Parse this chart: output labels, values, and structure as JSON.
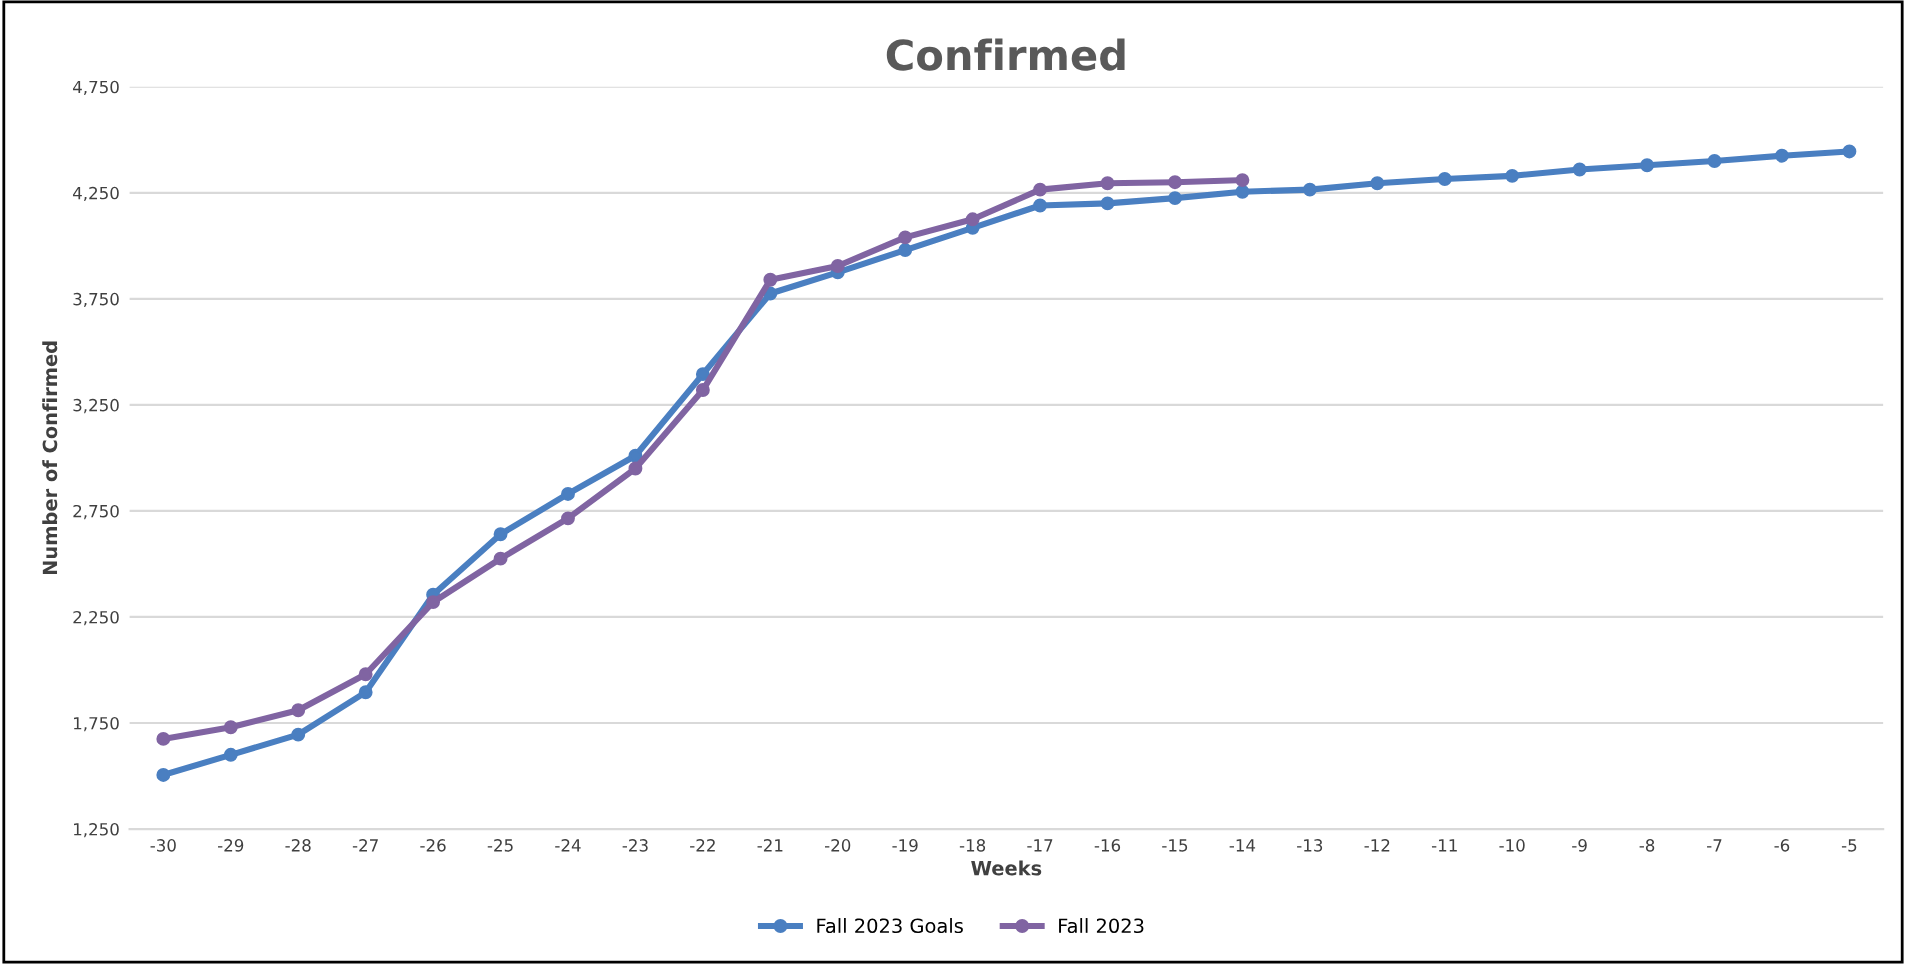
{
  "chart_data": {
    "type": "line",
    "title": "Confirmed",
    "xlabel": "Weeks",
    "ylabel": "Number of Confirmed",
    "categories": [
      "-30",
      "-29",
      "-28",
      "-27",
      "-26",
      "-25",
      "-24",
      "-23",
      "-22",
      "-21",
      "-20",
      "-19",
      "-18",
      "-17",
      "-16",
      "-15",
      "-14",
      "-13",
      "-12",
      "-11",
      "-10",
      "-9",
      "-8",
      "-7",
      "-6",
      "-5"
    ],
    "series": [
      {
        "name": "Fall 2023 Goals",
        "color": "#4a7fc1",
        "values": [
          1505,
          1600,
          1695,
          1895,
          2355,
          2640,
          2830,
          3010,
          3395,
          3775,
          3875,
          3980,
          4085,
          4190,
          4200,
          4225,
          4255,
          4265,
          4295,
          4315,
          4330,
          4360,
          4380,
          4400,
          4425,
          4445
        ]
      },
      {
        "name": "Fall 2023",
        "color": "#8064a2",
        "values": [
          1675,
          1730,
          1810,
          1980,
          2320,
          2525,
          2715,
          2950,
          3320,
          3840,
          3905,
          4040,
          4125,
          4265,
          4295,
          4300,
          4310,
          null,
          null,
          null,
          null,
          null,
          null,
          null,
          null,
          null
        ]
      }
    ],
    "ylim": [
      1250,
      4750
    ],
    "yticks": [
      {
        "value": 1250,
        "label": "1,250"
      },
      {
        "value": 1750,
        "label": "1,750"
      },
      {
        "value": 2250,
        "label": "2,250"
      },
      {
        "value": 2750,
        "label": "2,750"
      },
      {
        "value": 3250,
        "label": "3,250"
      },
      {
        "value": 3750,
        "label": "3,750"
      },
      {
        "value": 4250,
        "label": "4,250"
      },
      {
        "value": 4750,
        "label": "4,750"
      }
    ],
    "grid": "y",
    "legend": "bottom",
    "marker": "circle",
    "line_style": "solid"
  }
}
